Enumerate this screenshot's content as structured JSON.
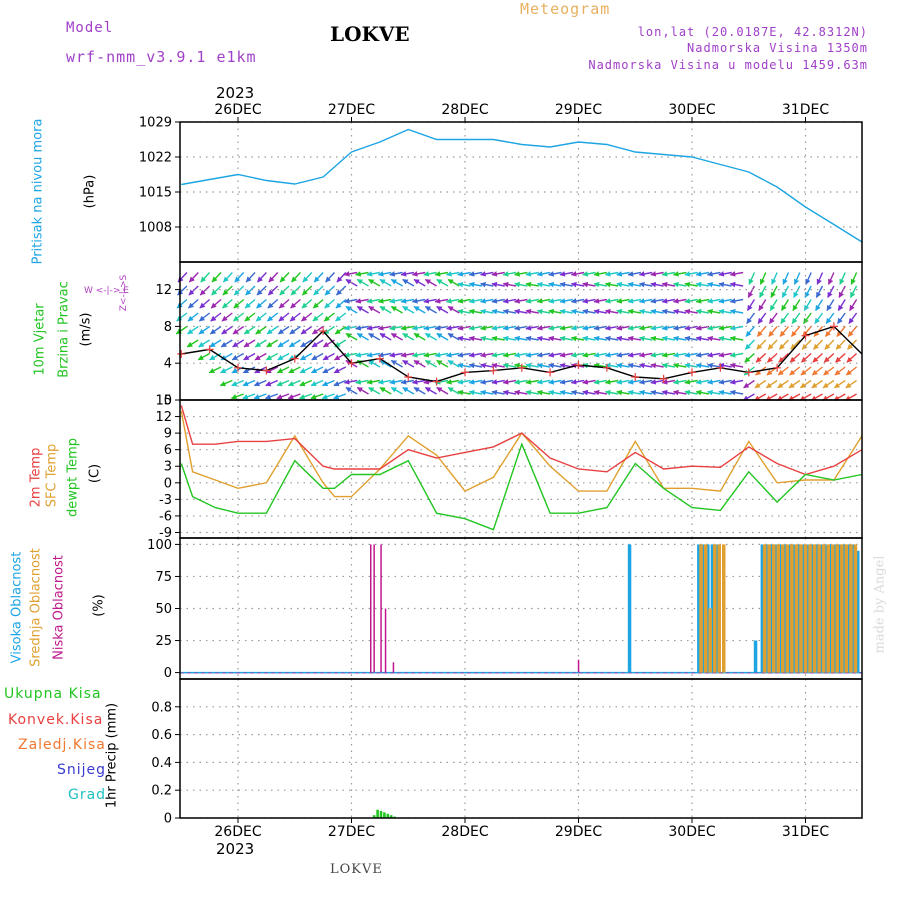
{
  "header": {
    "model_label": "Model",
    "model_value": "wrf-nmm_v3.9.1  e1km",
    "title": "LOKVE",
    "meteogram": "Meteogram",
    "lonlat": "lon,lat (20.0187E, 42.8312N)",
    "altitude": "Nadmorska Visina 1350m",
    "model_altitude": "Nadmorska Visina u modelu 1459.63m",
    "footer": "LOKVE",
    "watermark": "made by Angel",
    "year_top": "2023",
    "year_bottom": "2023"
  },
  "colors": {
    "pressure": "#1da5e3",
    "temp2m": "#e84040",
    "sfc": "#e0a030",
    "dewpt": "#22c522",
    "high_cloud": "#1da5e3",
    "mid_cloud": "#e0a030",
    "low_cloud": "#c0188c",
    "total_precip": "#22c522",
    "conv_precip": "#e84040",
    "frozen": "#f07830",
    "snow": "#3a3ad0",
    "hail": "#20c0c0",
    "wind_label": "#22c522",
    "compass": "#b040c0",
    "title_accent": "#e8b060",
    "purple_text": "#a040c8"
  },
  "panel_labels": {
    "pressure": {
      "name": "Pritisak na nivou mora",
      "unit": "(hPa)"
    },
    "wind": {
      "name1": "10m Vjetar",
      "name2": "Brzina i Pravac",
      "unit": "(m/s)",
      "compass_v": "Z<-|->S",
      "compass_h": "W <-|-> E"
    },
    "temp": {
      "l1": "2m Temp",
      "l2": "SFC Temp",
      "l3": "dewpt Temp",
      "unit": "(C)"
    },
    "cloud": {
      "l1": "Visoka Oblacnost",
      "l2": "Srednja Oblacnost",
      "l3": "Niska Oblacnost",
      "unit": "(%)"
    },
    "precip": {
      "l1": "Ukupna Kisa",
      "l2": "Konvek.Kisa",
      "l3": "Zaledj.Kisa",
      "l4": "Snijeg",
      "l5": "Grad",
      "unit": "1hr Precip (mm)"
    }
  },
  "chart_data": [
    {
      "type": "line",
      "title": "Pritisak na nivou mora",
      "ylabel": "(hPa)",
      "x_categories": [
        "26DEC",
        "27DEC",
        "28DEC",
        "29DEC",
        "30DEC",
        "31DEC"
      ],
      "ylim": [
        1001,
        1029
      ],
      "yticks": [
        1008,
        1015,
        1022,
        1029
      ],
      "grid": true,
      "series": [
        {
          "name": "Pritisak",
          "x": [
            -0.5,
            -0.25,
            0,
            0.25,
            0.5,
            0.75,
            1.0,
            1.25,
            1.5,
            1.75,
            2.0,
            2.25,
            2.5,
            2.75,
            3.0,
            3.25,
            3.5,
            3.75,
            4.0,
            4.25,
            4.5,
            4.75,
            5.0,
            5.25,
            5.5
          ],
          "y": [
            1016.5,
            1017.5,
            1018.5,
            1017.3,
            1016.6,
            1018,
            1023,
            1025,
            1027.5,
            1025.5,
            1025.5,
            1025.5,
            1024.5,
            1024,
            1025,
            1024.5,
            1023,
            1022.5,
            1022,
            1020.5,
            1019,
            1016,
            1012,
            1008.5,
            1005
          ]
        }
      ]
    },
    {
      "type": "line",
      "title": "10m Vjetar Brzina i Pravac",
      "ylabel": "(m/s)",
      "x_categories": [
        "26DEC",
        "27DEC",
        "28DEC",
        "29DEC",
        "30DEC",
        "31DEC"
      ],
      "ylim": [
        0,
        15
      ],
      "yticks": [
        0,
        4,
        8,
        12
      ],
      "grid": true,
      "series": [
        {
          "name": "Brzina",
          "x": [
            -0.5,
            -0.25,
            0,
            0.25,
            0.5,
            0.75,
            1.0,
            1.25,
            1.5,
            1.75,
            2.0,
            2.25,
            2.5,
            2.75,
            3.0,
            3.25,
            3.5,
            3.75,
            4.0,
            4.25,
            4.5,
            4.75,
            5.0,
            5.25,
            5.5
          ],
          "y": [
            5,
            5.5,
            3.5,
            3.2,
            4.5,
            7.5,
            4,
            4.5,
            2.5,
            2,
            3,
            3.2,
            3.5,
            3,
            3.8,
            3.5,
            2.5,
            2.3,
            3,
            3.5,
            3,
            3.5,
            7,
            8,
            5
          ]
        }
      ]
    },
    {
      "type": "line",
      "title": "2m Temp / SFC Temp / dewpt Temp",
      "ylabel": "(C)",
      "x_categories": [
        "26DEC",
        "27DEC",
        "28DEC",
        "29DEC",
        "30DEC",
        "31DEC"
      ],
      "ylim": [
        -10,
        15
      ],
      "yticks": [
        -9,
        -6,
        -3,
        0,
        3,
        6,
        9,
        12,
        15
      ],
      "grid": true,
      "series": [
        {
          "name": "2m Temp",
          "x": [
            -0.5,
            -0.4,
            -0.2,
            0,
            0.25,
            0.5,
            0.75,
            0.85,
            1.0,
            1.25,
            1.5,
            1.75,
            2.0,
            2.25,
            2.5,
            2.75,
            3.0,
            3.25,
            3.5,
            3.75,
            4.0,
            4.25,
            4.5,
            4.75,
            5.0,
            5.25,
            5.5
          ],
          "y": [
            14,
            7,
            7,
            7.5,
            7.5,
            8,
            3,
            2.5,
            2.5,
            2.5,
            6,
            4.5,
            5.5,
            6.5,
            9,
            4.5,
            2.5,
            2,
            5.5,
            2.5,
            3,
            2.8,
            6.5,
            3.5,
            1.5,
            3,
            6
          ]
        },
        {
          "name": "SFC Temp",
          "x": [
            -0.5,
            -0.4,
            -0.2,
            0,
            0.25,
            0.5,
            0.75,
            0.85,
            1.0,
            1.25,
            1.5,
            1.75,
            2.0,
            2.25,
            2.5,
            2.75,
            3.0,
            3.25,
            3.5,
            3.75,
            4.0,
            4.25,
            4.5,
            4.75,
            5.0,
            5.25,
            5.5
          ],
          "y": [
            13,
            2,
            0.5,
            -1,
            0,
            8.5,
            0,
            -2.5,
            -2.5,
            2.5,
            8.5,
            5,
            -1.5,
            1,
            9,
            3,
            -1.5,
            -1.5,
            7.5,
            -1,
            -1,
            -1.5,
            7.5,
            0,
            0.5,
            0.5,
            8.5
          ]
        },
        {
          "name": "dewpt Temp",
          "x": [
            -0.5,
            -0.4,
            -0.2,
            0,
            0.25,
            0.5,
            0.75,
            0.85,
            1.0,
            1.25,
            1.5,
            1.75,
            2.0,
            2.25,
            2.5,
            2.75,
            3.0,
            3.25,
            3.5,
            3.75,
            4.0,
            4.25,
            4.5,
            4.75,
            5.0,
            5.25,
            5.5
          ],
          "y": [
            3.5,
            -2.5,
            -4.5,
            -5.5,
            -5.5,
            4,
            -1,
            -1,
            1.5,
            1.5,
            4,
            -5.5,
            -6.5,
            -8.5,
            7,
            -5.5,
            -5.5,
            -4.5,
            3.5,
            -1,
            -4.5,
            -5,
            2,
            -3.5,
            1.5,
            0.5,
            1.5
          ]
        }
      ]
    },
    {
      "type": "bar",
      "title": "Visoka / Srednja / Niska Oblacnost",
      "ylabel": "(%)",
      "x_categories": [
        "26DEC",
        "27DEC",
        "28DEC",
        "29DEC",
        "30DEC",
        "31DEC"
      ],
      "ylim": [
        -5,
        105
      ],
      "yticks": [
        0,
        25,
        50,
        75,
        100
      ],
      "grid": true,
      "series": [
        {
          "name": "Visoka Oblacnost",
          "x": [
            3.45,
            4.06,
            4.1,
            4.14,
            4.18,
            4.22,
            4.56,
            4.62,
            4.66,
            4.7,
            4.74,
            4.78,
            4.82,
            4.86,
            4.9,
            4.94,
            4.98,
            5.02,
            5.06,
            5.1,
            5.14,
            5.18,
            5.22,
            5.26,
            5.3,
            5.34,
            5.38,
            5.42,
            5.46
          ],
          "y": [
            100,
            100,
            100,
            100,
            100,
            100,
            25,
            100,
            100,
            100,
            100,
            100,
            100,
            100,
            100,
            100,
            100,
            100,
            100,
            100,
            100,
            100,
            100,
            100,
            100,
            100,
            100,
            100,
            95
          ]
        },
        {
          "name": "Srednja Oblacnost",
          "x": [
            4.08,
            4.12,
            4.16,
            4.2,
            4.24,
            4.28,
            4.64,
            4.68,
            4.72,
            4.76,
            4.8,
            4.84,
            4.88,
            4.92,
            4.96,
            5.0,
            5.04,
            5.08,
            5.12,
            5.16,
            5.2,
            5.24,
            5.28,
            5.32,
            5.36,
            5.4,
            5.44
          ],
          "y": [
            100,
            100,
            50,
            100,
            100,
            100,
            100,
            100,
            100,
            100,
            100,
            100,
            100,
            100,
            100,
            100,
            100,
            100,
            100,
            100,
            100,
            100,
            100,
            100,
            100,
            100,
            100
          ]
        },
        {
          "name": "Niska Oblacnost",
          "x": [
            1.17,
            1.2,
            1.26,
            1.3,
            1.37,
            3.0
          ],
          "y": [
            100,
            100,
            100,
            50,
            8,
            10
          ]
        }
      ]
    },
    {
      "type": "bar",
      "title": "1hr Precip",
      "ylabel": "1hr Precip (mm)",
      "x_categories": [
        "26DEC",
        "27DEC",
        "28DEC",
        "29DEC",
        "30DEC",
        "31DEC"
      ],
      "ylim": [
        0,
        1.0
      ],
      "yticks": [
        0,
        0.2,
        0.4,
        0.6,
        0.8
      ],
      "grid": true,
      "series": [
        {
          "name": "Ukupna Kisa",
          "x": [
            1.2,
            1.23,
            1.26,
            1.29,
            1.32,
            1.35,
            1.38
          ],
          "y": [
            0.02,
            0.06,
            0.05,
            0.04,
            0.03,
            0.02,
            0.01
          ]
        }
      ]
    }
  ]
}
